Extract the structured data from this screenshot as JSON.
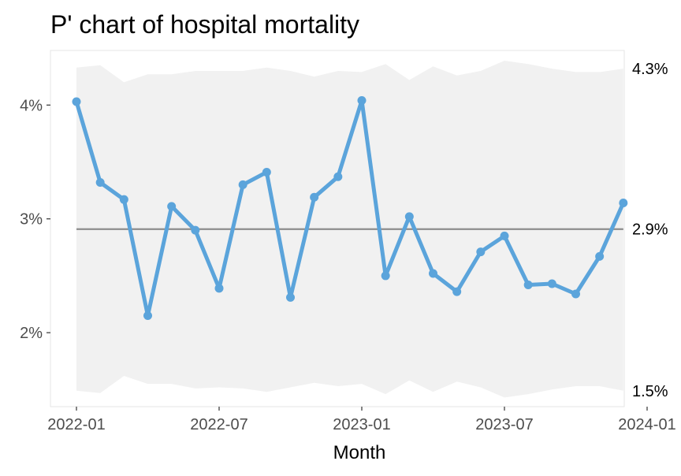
{
  "chart_data": {
    "type": "line",
    "title": "P' chart of hospital mortality",
    "xlabel": "Month",
    "ylabel": "",
    "x": [
      "2022-01",
      "2022-02",
      "2022-03",
      "2022-04",
      "2022-05",
      "2022-06",
      "2022-07",
      "2022-08",
      "2022-09",
      "2022-10",
      "2022-11",
      "2022-12",
      "2023-01",
      "2023-02",
      "2023-03",
      "2023-04",
      "2023-05",
      "2023-06",
      "2023-07",
      "2023-08",
      "2023-09",
      "2023-10",
      "2023-11",
      "2023-12"
    ],
    "series": [
      {
        "values": [
          4.03,
          3.32,
          3.17,
          2.15,
          3.11,
          2.9,
          2.39,
          3.3,
          3.41,
          2.31,
          3.19,
          3.37,
          4.04,
          2.5,
          3.02,
          2.52,
          2.36,
          2.71,
          2.85,
          2.42,
          2.43,
          2.34,
          2.67,
          3.14
        ]
      }
    ],
    "center_line": 2.91,
    "upper_limit": [
      4.33,
      4.35,
      4.2,
      4.27,
      4.27,
      4.3,
      4.3,
      4.3,
      4.33,
      4.3,
      4.25,
      4.3,
      4.29,
      4.36,
      4.22,
      4.34,
      4.26,
      4.3,
      4.39,
      4.36,
      4.32,
      4.29,
      4.29,
      4.32
    ],
    "lower_limit": [
      1.49,
      1.47,
      1.62,
      1.55,
      1.55,
      1.51,
      1.52,
      1.51,
      1.48,
      1.52,
      1.56,
      1.53,
      1.55,
      1.46,
      1.58,
      1.48,
      1.57,
      1.52,
      1.43,
      1.46,
      1.5,
      1.53,
      1.53,
      1.49
    ],
    "limit_labels": {
      "upper": "4.3%",
      "center": "2.9%",
      "lower": "1.5%"
    },
    "y_ticks": [
      {
        "value": 2,
        "label": "2%"
      },
      {
        "value": 3,
        "label": "3%"
      },
      {
        "value": 4,
        "label": "4%"
      }
    ],
    "x_ticks": [
      {
        "value": "2022-01",
        "label": "2022-01"
      },
      {
        "value": "2022-07",
        "label": "2022-07"
      },
      {
        "value": "2023-01",
        "label": "2023-01"
      },
      {
        "value": "2023-07",
        "label": "2023-07"
      },
      {
        "value": "2024-01",
        "label": "2024-01"
      }
    ],
    "ylim": [
      1.35,
      4.48
    ],
    "grid": true,
    "legend": "none",
    "colors": {
      "line": "#5ba4db",
      "center": "#8c8c8c",
      "band": "#f1f1f1",
      "panel_border": "#e6e6e6"
    }
  }
}
